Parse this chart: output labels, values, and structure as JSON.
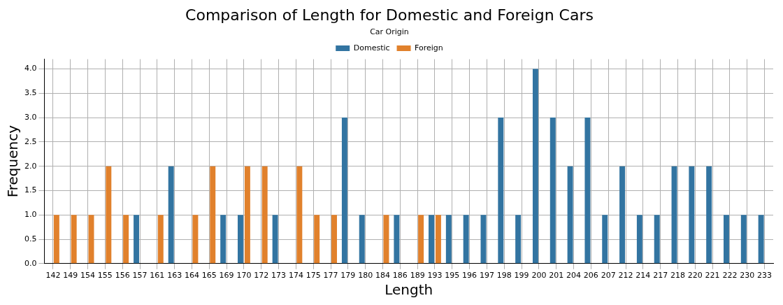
{
  "chart_data": {
    "type": "bar",
    "title": "Comparison of Length for Domestic and Foreign Cars",
    "xlabel": "Length",
    "ylabel": "Frequency",
    "legend_title": "Car Origin",
    "categories": [
      "142",
      "149",
      "154",
      "155",
      "156",
      "157",
      "161",
      "163",
      "164",
      "165",
      "169",
      "170",
      "172",
      "173",
      "174",
      "175",
      "177",
      "179",
      "180",
      "184",
      "186",
      "189",
      "193",
      "195",
      "196",
      "197",
      "198",
      "199",
      "200",
      "201",
      "204",
      "206",
      "207",
      "212",
      "214",
      "217",
      "218",
      "220",
      "221",
      "222",
      "230",
      "233"
    ],
    "series": [
      {
        "name": "Domestic",
        "color": "#3274a1",
        "values": [
          0,
          0,
          0,
          0,
          0,
          1,
          0,
          2,
          0,
          0,
          1,
          1,
          0,
          1,
          0,
          0,
          0,
          3,
          1,
          0,
          1,
          0,
          1,
          1,
          1,
          1,
          3,
          1,
          4,
          3,
          2,
          3,
          1,
          2,
          1,
          1,
          2,
          2,
          2,
          1,
          1,
          1
        ]
      },
      {
        "name": "Foreign",
        "color": "#e1812c",
        "values": [
          1,
          1,
          1,
          2,
          1,
          0,
          1,
          0,
          1,
          2,
          0,
          2,
          2,
          0,
          2,
          1,
          1,
          0,
          0,
          1,
          0,
          1,
          1,
          0,
          0,
          0,
          0,
          0,
          0,
          0,
          0,
          0,
          0,
          0,
          0,
          0,
          0,
          0,
          0,
          0,
          0,
          0
        ]
      }
    ],
    "ylim": [
      0,
      4.2
    ],
    "yticks": [
      {
        "value": 0,
        "label": "0.0"
      },
      {
        "value": 0.5,
        "label": "0.5"
      },
      {
        "value": 1,
        "label": "1.0"
      },
      {
        "value": 1.5,
        "label": "1.5"
      },
      {
        "value": 2,
        "label": "2.0"
      },
      {
        "value": 2.5,
        "label": "2.5"
      },
      {
        "value": 3,
        "label": "3.0"
      },
      {
        "value": 3.5,
        "label": "3.5"
      },
      {
        "value": 4,
        "label": "4.0"
      }
    ],
    "grid": true,
    "legend": "top"
  }
}
